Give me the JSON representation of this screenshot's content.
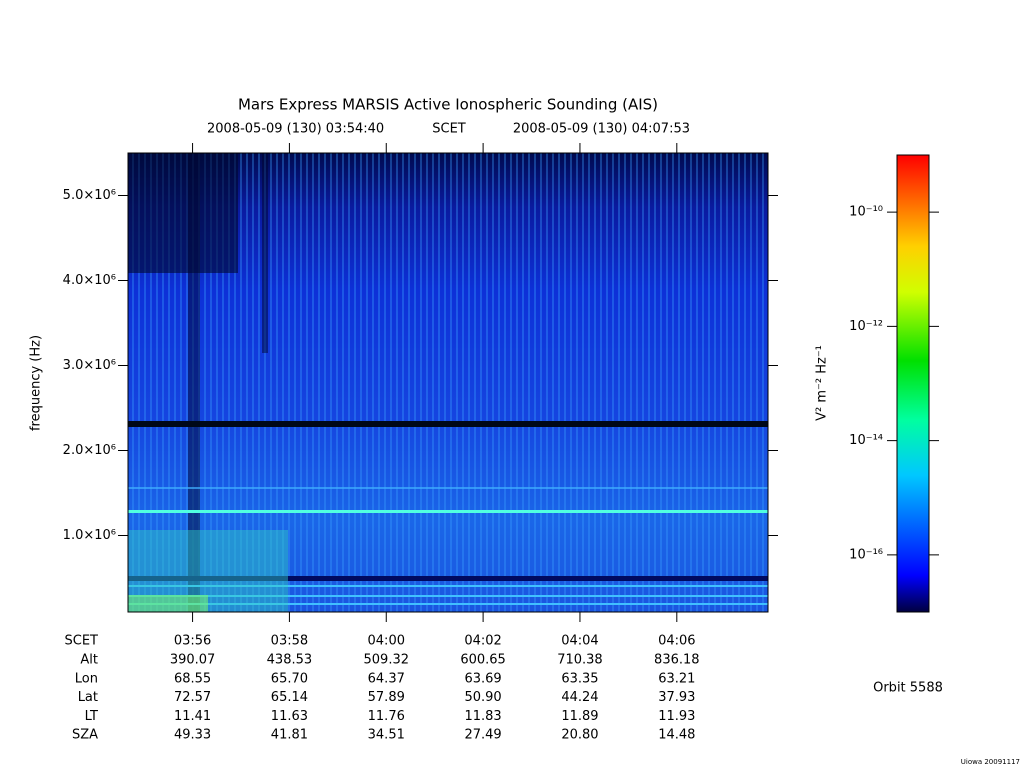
{
  "chart_data": {
    "type": "spectrogram",
    "title": "Mars Express MARSIS Active Ionospheric Sounding (AIS)",
    "subtitle": {
      "start": "2008-05-09 (130) 03:54:40",
      "frame": "SCET",
      "end": "2008-05-09 (130) 04:07:53"
    },
    "ylabel": "frequency (Hz)",
    "ylim": [
      100000,
      5500000
    ],
    "yticks": [
      {
        "value": 1000000,
        "label": "1.0×10⁶"
      },
      {
        "value": 2000000,
        "label": "2.0×10⁶"
      },
      {
        "value": 3000000,
        "label": "3.0×10⁶"
      },
      {
        "value": 4000000,
        "label": "4.0×10⁶"
      },
      {
        "value": 5000000,
        "label": "5.0×10⁶"
      }
    ],
    "xlim": [
      "03:54:40",
      "04:07:53"
    ],
    "xticks": [
      "03:56",
      "03:58",
      "04:00",
      "04:02",
      "04:04",
      "04:06"
    ],
    "ephemeris": {
      "label": "SCET",
      "rows": [
        {
          "name": "Alt",
          "values": [
            "390.07",
            "438.53",
            "509.32",
            "600.65",
            "710.38",
            "836.18"
          ]
        },
        {
          "name": "Lon",
          "values": [
            "68.55",
            "65.70",
            "64.37",
            "63.69",
            "63.35",
            "63.21"
          ]
        },
        {
          "name": "Lat",
          "values": [
            "72.57",
            "65.14",
            "57.89",
            "50.90",
            "44.24",
            "37.93"
          ]
        },
        {
          "name": "LT",
          "values": [
            "11.41",
            "11.63",
            "11.76",
            "11.83",
            "11.89",
            "11.93"
          ]
        },
        {
          "name": "SZA",
          "values": [
            "49.33",
            "41.81",
            "34.51",
            "27.49",
            "20.80",
            "14.48"
          ]
        }
      ]
    },
    "colorbar": {
      "label": "V² m⁻² Hz⁻¹",
      "log": true,
      "zlim": [
        1e-17,
        1e-09
      ],
      "ticks": [
        {
          "value": 1e-10,
          "label": "10⁻¹⁰"
        },
        {
          "value": 1e-12,
          "label": "10⁻¹²"
        },
        {
          "value": 1e-14,
          "label": "10⁻¹⁴"
        },
        {
          "value": 1e-16,
          "label": "10⁻¹⁶"
        }
      ]
    },
    "orbit": "Orbit 5588",
    "credit": "Uiowa 20091117"
  }
}
